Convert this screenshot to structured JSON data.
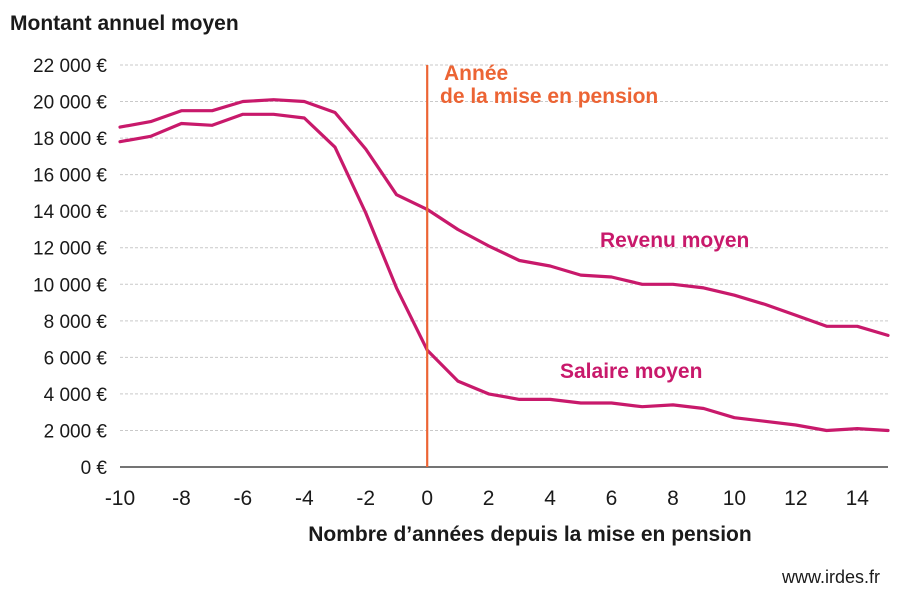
{
  "chart_data": {
    "type": "line",
    "ylabel": "Montant annuel moyen",
    "xlabel": "Nombre d’années depuis la mise en pension",
    "ylim": [
      0,
      22000
    ],
    "xlim": [
      -10,
      15
    ],
    "y_ticks": [
      0,
      2000,
      4000,
      6000,
      8000,
      10000,
      12000,
      14000,
      16000,
      18000,
      20000,
      22000
    ],
    "y_tick_labels": [
      "0 €",
      "2 000 €",
      "4 000 €",
      "6 000 €",
      "8 000 €",
      "10 000 €",
      "12 000 €",
      "14 000 €",
      "16 000 €",
      "18 000 €",
      "20 000 €",
      "22 000 €"
    ],
    "x_ticks": [
      -10,
      -8,
      -6,
      -4,
      -2,
      0,
      2,
      4,
      6,
      8,
      10,
      12,
      14
    ],
    "x_tick_labels": [
      "-10",
      "-8",
      "-6",
      "-4",
      "-2",
      "0",
      "2",
      "4",
      "6",
      "8",
      "10",
      "12",
      "14"
    ],
    "grid": "horizontal",
    "line_color": "#c8196b",
    "marker_color": "#ec6434",
    "vertical_marker": {
      "x": 0,
      "label_line1": "Année",
      "label_line2": "de la mise en pension"
    },
    "x": [
      -10,
      -9,
      -8,
      -7,
      -6,
      -5,
      -4,
      -3,
      -2,
      -1,
      0,
      1,
      2,
      3,
      4,
      5,
      6,
      7,
      8,
      9,
      10,
      11,
      12,
      13,
      14,
      15
    ],
    "series": [
      {
        "name": "Revenu moyen",
        "values": [
          18600,
          18900,
          19500,
          19500,
          20000,
          20100,
          20000,
          19400,
          17400,
          14900,
          14100,
          13000,
          12100,
          11300,
          11000,
          10500,
          10400,
          10000,
          10000,
          9800,
          9400,
          8900,
          8300,
          7700,
          7700,
          7200
        ]
      },
      {
        "name": "Salaire moyen",
        "values": [
          17800,
          18100,
          18800,
          18700,
          19300,
          19300,
          19100,
          17500,
          13900,
          9800,
          6400,
          4700,
          4000,
          3700,
          3700,
          3500,
          3500,
          3300,
          3400,
          3200,
          2700,
          2500,
          2300,
          2000,
          2100,
          2000
        ]
      }
    ]
  },
  "source": "www.irdes.fr"
}
